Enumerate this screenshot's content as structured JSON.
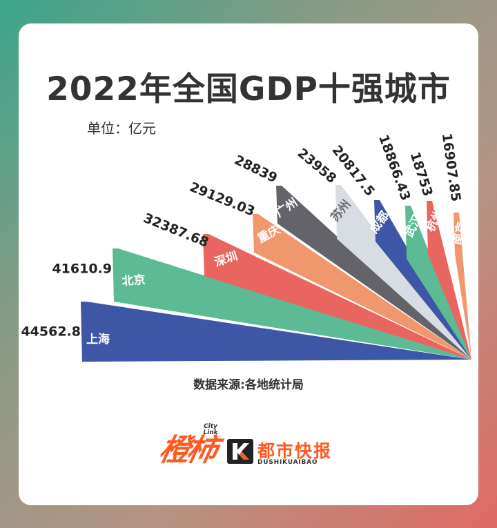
{
  "header": {
    "title": "2022年全国GDP十强城市",
    "unit": "单位：亿元"
  },
  "footer": {
    "source": "数据来源:各地统计局",
    "logo_left": "橙柿",
    "logo_left_sub": "City Link",
    "logo_right_title": "都市快报",
    "logo_right_en": "DUSHIKUAIBAO"
  },
  "chart_data": {
    "type": "bar",
    "layout": "fan",
    "title": "2022年全国GDP十强城市",
    "ylabel": "单位：亿元",
    "categories": [
      "上海",
      "北京",
      "深圳",
      "重庆",
      "广州",
      "苏州",
      "成都",
      "武汉",
      "杭州",
      "南京"
    ],
    "values": [
      44562.8,
      41610.9,
      32387.68,
      29129.03,
      28839,
      23958,
      20817.5,
      18866.43,
      18753,
      16907.85
    ],
    "value_labels": [
      "44562.8",
      "41610.9",
      "32387.68",
      "29129.03",
      "28839",
      "23958",
      "20817.5",
      "18866.43",
      "18753",
      "16907.85"
    ],
    "colors": [
      "#3d56a6",
      "#5cba94",
      "#e96560",
      "#f0976e",
      "#64636a",
      "#d8dde3",
      "#3d56a6",
      "#5cba94",
      "#e96560",
      "#f0976e"
    ],
    "label_colors": [
      "#ffffff",
      "#ffffff",
      "#ffffff",
      "#ffffff",
      "#ffffff",
      "#6b6b6b",
      "#ffffff",
      "#ffffff",
      "#ffffff",
      "#ffffff"
    ],
    "source": "数据来源:各地统计局"
  }
}
